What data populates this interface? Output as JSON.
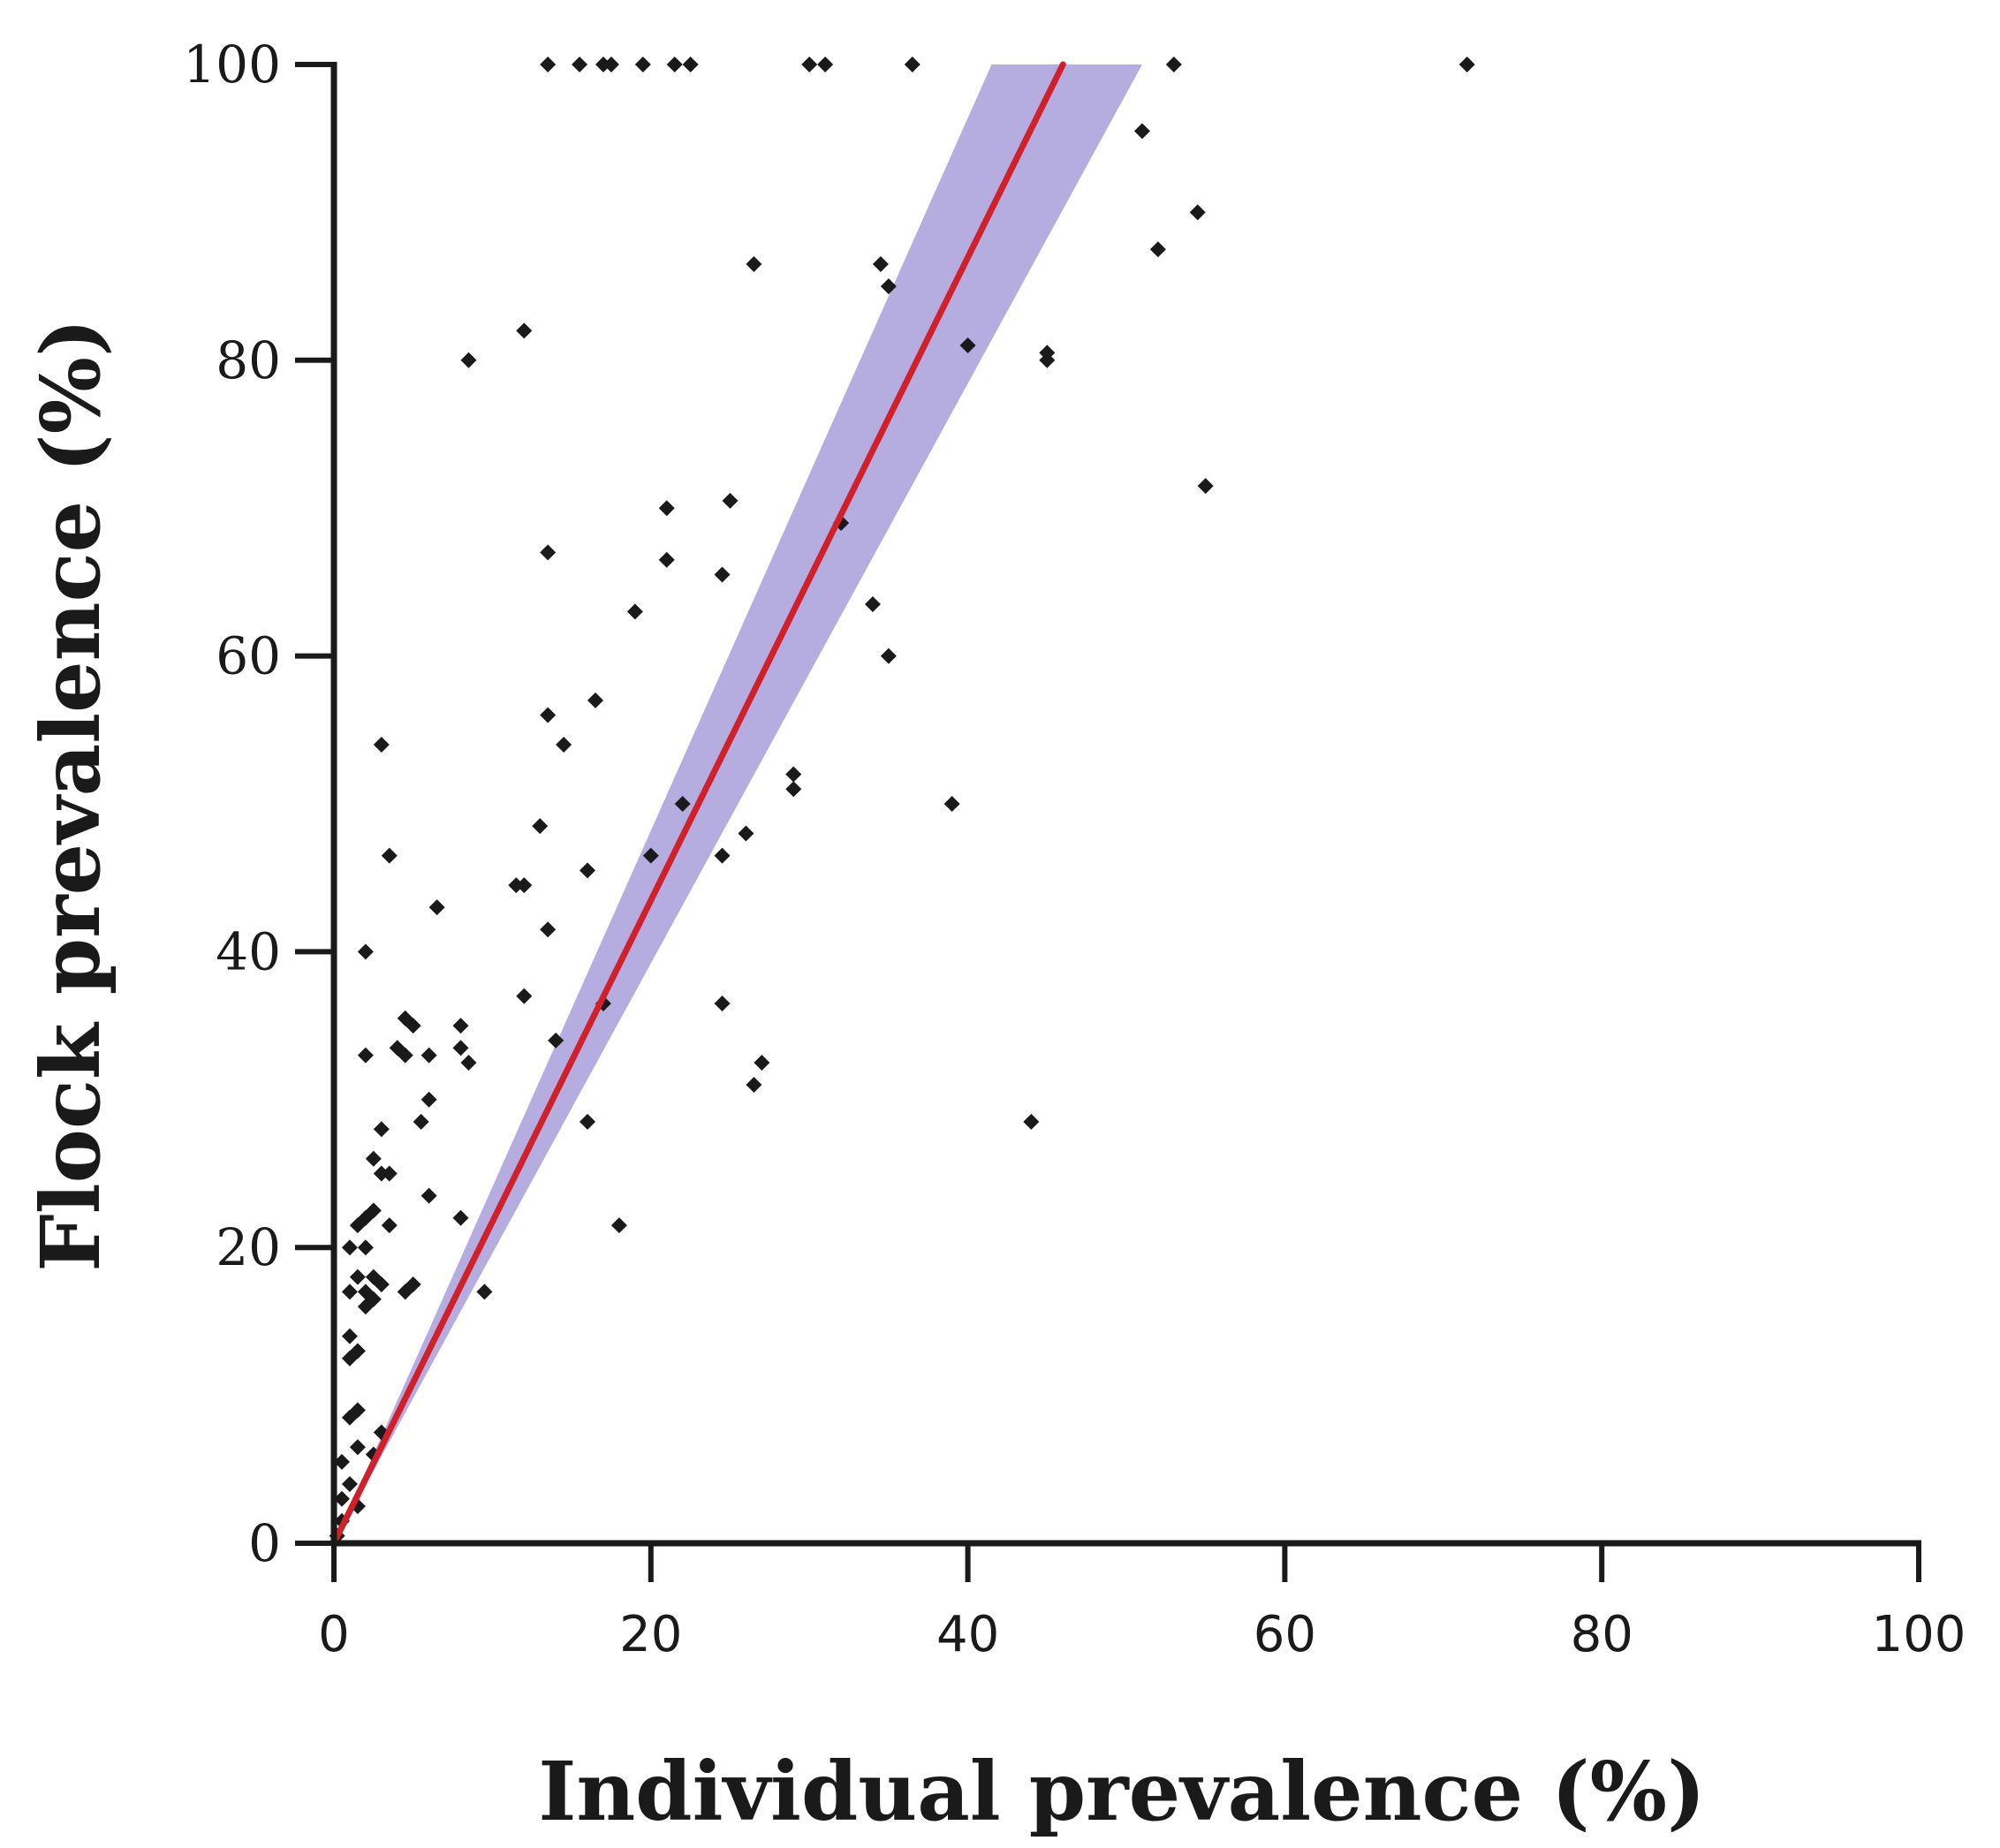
{
  "chart_data": {
    "type": "scatter",
    "title": "",
    "xlabel": "Individual prevalence (%)",
    "ylabel": "Flock prevalence (%)",
    "xlim": [
      0,
      100
    ],
    "ylim": [
      0,
      100
    ],
    "xticks": [
      "0",
      "20",
      "40",
      "60",
      "80",
      "100"
    ],
    "yticks": [
      "0",
      "20",
      "40",
      "60",
      "80",
      "100"
    ],
    "grid": false,
    "colors": {
      "points": "#1a1a1a",
      "fit_line": "#d0202a",
      "confidence_band": "#ada3dd",
      "axis": "#1a1a1a"
    },
    "fit_line": {
      "name": "linear fit",
      "x": [
        0,
        46
      ],
      "y": [
        0,
        100
      ]
    },
    "confidence_band": {
      "name": "95% confidence band",
      "x": [
        0,
        41.5,
        51,
        0
      ],
      "y": [
        0,
        100,
        100,
        0
      ]
    },
    "points": [
      [
        13.5,
        100
      ],
      [
        15.5,
        100
      ],
      [
        17,
        100
      ],
      [
        17.5,
        100
      ],
      [
        19.5,
        100
      ],
      [
        21.5,
        100
      ],
      [
        22.5,
        100
      ],
      [
        30,
        100
      ],
      [
        31,
        100
      ],
      [
        36.5,
        100
      ],
      [
        53,
        100
      ],
      [
        71.5,
        100
      ],
      [
        51,
        95.5
      ],
      [
        54.5,
        90
      ],
      [
        52,
        87.5
      ],
      [
        26.5,
        86.5
      ],
      [
        34.5,
        86.5
      ],
      [
        35,
        85
      ],
      [
        40,
        81
      ],
      [
        45,
        80.5
      ],
      [
        45,
        80
      ],
      [
        12,
        82
      ],
      [
        8.5,
        80
      ],
      [
        55,
        71.5
      ],
      [
        25,
        70.5
      ],
      [
        21,
        70
      ],
      [
        21,
        66.5
      ],
      [
        32,
        69
      ],
      [
        13.5,
        67
      ],
      [
        24.5,
        65.5
      ],
      [
        19,
        63
      ],
      [
        34,
        63.5
      ],
      [
        35,
        60
      ],
      [
        16.5,
        57
      ],
      [
        13.5,
        56
      ],
      [
        14.5,
        54
      ],
      [
        3,
        54
      ],
      [
        29,
        52
      ],
      [
        29,
        51
      ],
      [
        22,
        50
      ],
      [
        39,
        50
      ],
      [
        13,
        48.5
      ],
      [
        26,
        48
      ],
      [
        20,
        46.5
      ],
      [
        24.5,
        46.5
      ],
      [
        3.5,
        46.5
      ],
      [
        16,
        45.5
      ],
      [
        11.5,
        44.5
      ],
      [
        12,
        44.5
      ],
      [
        6.5,
        43
      ],
      [
        13.5,
        41.5
      ],
      [
        2,
        40
      ],
      [
        24.5,
        36.5
      ],
      [
        17,
        36.5
      ],
      [
        12,
        37
      ],
      [
        8,
        35
      ],
      [
        4.5,
        35.5
      ],
      [
        5,
        35
      ],
      [
        14,
        34
      ],
      [
        4,
        33.5
      ],
      [
        4.5,
        33
      ],
      [
        6,
        33
      ],
      [
        8,
        33.5
      ],
      [
        8.5,
        32.5
      ],
      [
        2,
        33
      ],
      [
        27,
        32.5
      ],
      [
        26.5,
        31
      ],
      [
        6,
        30
      ],
      [
        5.5,
        28.5
      ],
      [
        3,
        28
      ],
      [
        16,
        28.5
      ],
      [
        44,
        28.5
      ],
      [
        2.5,
        26
      ],
      [
        3,
        25
      ],
      [
        3.5,
        25
      ],
      [
        6,
        23.5
      ],
      [
        2,
        22
      ],
      [
        8,
        22
      ],
      [
        2.5,
        22.5
      ],
      [
        3.5,
        21.5
      ],
      [
        1.5,
        21.5
      ],
      [
        18,
        21.5
      ],
      [
        1,
        20
      ],
      [
        2,
        20
      ],
      [
        1.5,
        18
      ],
      [
        2.5,
        18
      ],
      [
        3,
        17.5
      ],
      [
        1,
        17
      ],
      [
        2,
        17
      ],
      [
        4.5,
        17
      ],
      [
        5,
        17.5
      ],
      [
        9.5,
        17
      ],
      [
        2.5,
        16.5
      ],
      [
        2,
        16
      ],
      [
        1,
        14
      ],
      [
        1.5,
        13
      ],
      [
        1,
        12.5
      ],
      [
        1.5,
        9
      ],
      [
        1,
        8.5
      ],
      [
        3,
        7.5
      ],
      [
        1.5,
        6.5
      ],
      [
        2.5,
        6
      ],
      [
        0.5,
        5.5
      ],
      [
        1,
        4
      ],
      [
        0.5,
        3
      ],
      [
        1.5,
        2.5
      ],
      [
        0.5,
        1.5
      ],
      [
        0.2,
        0.5
      ]
    ]
  }
}
